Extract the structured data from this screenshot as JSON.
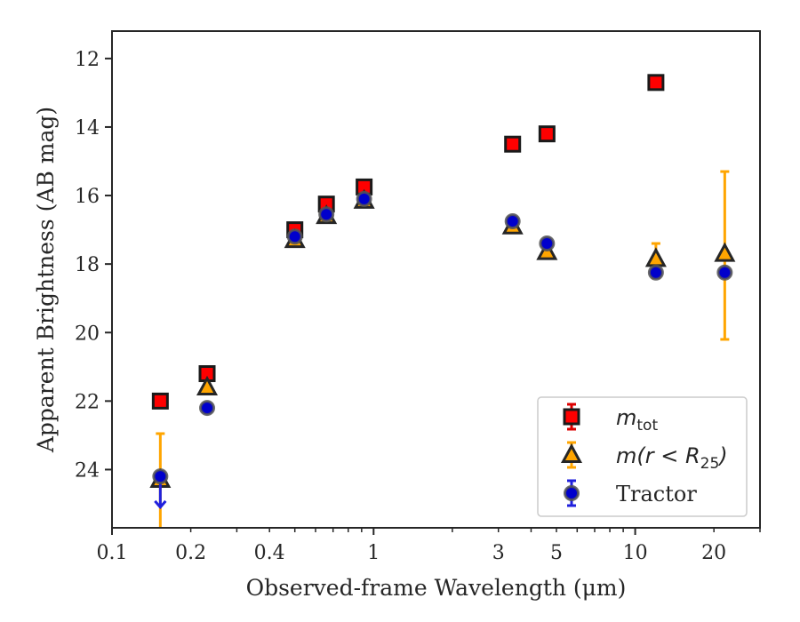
{
  "chart_data": {
    "type": "scatter",
    "xlabel": "Observed-frame Wavelength (μm)",
    "ylabel": "Apparent Brightness (AB mag)",
    "xscale": "log",
    "xlim": [
      0.1,
      30
    ],
    "ylim": [
      25.7,
      11.2
    ],
    "y_inverted": true,
    "grid": false,
    "legend_position": "bottom-right",
    "x_ticks": [
      {
        "value": 0.1,
        "label": "0.1"
      },
      {
        "value": 0.2,
        "label": "0.2"
      },
      {
        "value": 0.4,
        "label": "0.4"
      },
      {
        "value": 1,
        "label": "1"
      },
      {
        "value": 3,
        "label": "3"
      },
      {
        "value": 5,
        "label": "5"
      },
      {
        "value": 10,
        "label": "10"
      },
      {
        "value": 20,
        "label": "20"
      }
    ],
    "y_ticks": [
      {
        "value": 12,
        "label": "12"
      },
      {
        "value": 14,
        "label": "14"
      },
      {
        "value": 16,
        "label": "16"
      },
      {
        "value": 18,
        "label": "18"
      },
      {
        "value": 20,
        "label": "20"
      },
      {
        "value": 22,
        "label": "22"
      },
      {
        "value": 24,
        "label": "24"
      }
    ],
    "series": [
      {
        "key": "mtot",
        "legend_main": "m",
        "legend_sub": "tot",
        "marker": "square",
        "color": "#ff0000",
        "edge": "#1a1a1a",
        "points": [
          {
            "x": 0.153,
            "y": 22.0
          },
          {
            "x": 0.231,
            "y": 21.2
          },
          {
            "x": 0.5,
            "y": 17.0
          },
          {
            "x": 0.66,
            "y": 16.25
          },
          {
            "x": 0.92,
            "y": 15.75
          },
          {
            "x": 3.4,
            "y": 14.5
          },
          {
            "x": 4.6,
            "y": 14.2
          },
          {
            "x": 12.0,
            "y": 12.7
          }
        ]
      },
      {
        "key": "mr25",
        "legend_main": "m(r < R",
        "legend_sub": "25",
        "legend_end": ")",
        "marker": "triangle",
        "color": "#ffa500",
        "edge": "#262626",
        "errcolor": "#ffa500",
        "points": [
          {
            "x": 0.153,
            "y": 24.3,
            "err_low": 22.95,
            "err_high": 25.7
          },
          {
            "x": 0.231,
            "y": 21.6
          },
          {
            "x": 0.5,
            "y": 17.3
          },
          {
            "x": 0.66,
            "y": 16.6
          },
          {
            "x": 0.92,
            "y": 16.15
          },
          {
            "x": 3.4,
            "y": 16.9
          },
          {
            "x": 4.6,
            "y": 17.65
          },
          {
            "x": 12.0,
            "y": 17.85,
            "err_low": 17.4,
            "err_high": 18.4
          },
          {
            "x": 22.0,
            "y": 17.7,
            "err_low": 15.3,
            "err_high": 20.2
          }
        ]
      },
      {
        "key": "tractor",
        "legend_main": "Tractor",
        "marker": "circle",
        "color": "#0000cc",
        "edge": "#555555",
        "points": [
          {
            "x": 0.153,
            "y": 24.2,
            "upper_limit": true,
            "arrow_to": 25.1
          },
          {
            "x": 0.231,
            "y": 22.2
          },
          {
            "x": 0.5,
            "y": 17.2
          },
          {
            "x": 0.66,
            "y": 16.55
          },
          {
            "x": 0.92,
            "y": 16.1
          },
          {
            "x": 3.4,
            "y": 16.75
          },
          {
            "x": 4.6,
            "y": 17.4
          },
          {
            "x": 12.0,
            "y": 18.25
          },
          {
            "x": 22.0,
            "y": 18.25
          }
        ]
      }
    ]
  }
}
